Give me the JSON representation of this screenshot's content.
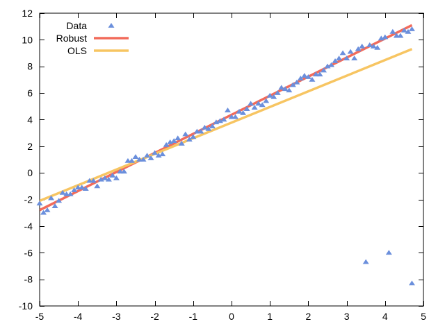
{
  "chart_data": {
    "type": "scatter",
    "title": "",
    "xlabel": "",
    "ylabel": "",
    "xlim": [
      -5,
      5
    ],
    "ylim": [
      -10,
      12
    ],
    "xticks": [
      -5,
      -4,
      -3,
      -2,
      -1,
      0,
      1,
      2,
      3,
      4,
      5
    ],
    "yticks": [
      -10,
      -8,
      -6,
      -4,
      -2,
      0,
      2,
      4,
      6,
      8,
      10,
      12
    ],
    "grid": false,
    "legend_position": "top-left",
    "series": [
      {
        "name": "Data",
        "kind": "points",
        "marker": "triangle",
        "color": "#6b8fdc",
        "points": [
          [
            -5.0,
            -2.3
          ],
          [
            -4.9,
            -3.0
          ],
          [
            -4.8,
            -2.8
          ],
          [
            -4.7,
            -1.9
          ],
          [
            -4.6,
            -2.5
          ],
          [
            -4.5,
            -2.1
          ],
          [
            -4.4,
            -1.5
          ],
          [
            -4.3,
            -1.6
          ],
          [
            -4.2,
            -1.6
          ],
          [
            -4.1,
            -1.3
          ],
          [
            -4.0,
            -1.1
          ],
          [
            -3.9,
            -1.1
          ],
          [
            -3.8,
            -1.2
          ],
          [
            -3.7,
            -0.6
          ],
          [
            -3.6,
            -0.6
          ],
          [
            -3.5,
            -1.0
          ],
          [
            -3.4,
            -0.5
          ],
          [
            -3.3,
            -0.4
          ],
          [
            -3.2,
            -0.5
          ],
          [
            -3.1,
            -0.2
          ],
          [
            -3.0,
            -0.4
          ],
          [
            -2.9,
            0.1
          ],
          [
            -2.8,
            0.1
          ],
          [
            -2.7,
            0.9
          ],
          [
            -2.6,
            0.9
          ],
          [
            -2.5,
            1.2
          ],
          [
            -2.4,
            1.0
          ],
          [
            -2.3,
            1.0
          ],
          [
            -2.2,
            1.3
          ],
          [
            -2.1,
            1.1
          ],
          [
            -2.0,
            1.5
          ],
          [
            -1.9,
            1.3
          ],
          [
            -1.8,
            1.4
          ],
          [
            -1.7,
            2.1
          ],
          [
            -1.6,
            2.3
          ],
          [
            -1.5,
            2.4
          ],
          [
            -1.4,
            2.6
          ],
          [
            -1.3,
            2.2
          ],
          [
            -1.2,
            2.9
          ],
          [
            -1.1,
            2.5
          ],
          [
            -1.0,
            2.7
          ],
          [
            -0.9,
            3.1
          ],
          [
            -0.8,
            3.1
          ],
          [
            -0.7,
            3.4
          ],
          [
            -0.6,
            3.3
          ],
          [
            -0.5,
            3.5
          ],
          [
            -0.4,
            3.8
          ],
          [
            -0.3,
            3.9
          ],
          [
            -0.2,
            4.0
          ],
          [
            -0.1,
            4.7
          ],
          [
            0.0,
            4.2
          ],
          [
            0.1,
            4.2
          ],
          [
            0.2,
            4.6
          ],
          [
            0.3,
            4.5
          ],
          [
            0.4,
            4.8
          ],
          [
            0.5,
            5.2
          ],
          [
            0.6,
            4.9
          ],
          [
            0.7,
            5.2
          ],
          [
            0.8,
            5.1
          ],
          [
            0.9,
            5.4
          ],
          [
            1.0,
            5.8
          ],
          [
            1.1,
            5.7
          ],
          [
            1.2,
            6.0
          ],
          [
            1.3,
            6.4
          ],
          [
            1.4,
            6.3
          ],
          [
            1.5,
            6.2
          ],
          [
            1.6,
            6.6
          ],
          [
            1.7,
            6.8
          ],
          [
            1.8,
            7.1
          ],
          [
            1.9,
            7.3
          ],
          [
            2.0,
            7.2
          ],
          [
            2.1,
            7.0
          ],
          [
            2.2,
            7.4
          ],
          [
            2.3,
            7.4
          ],
          [
            2.4,
            7.7
          ],
          [
            2.5,
            8.0
          ],
          [
            2.6,
            8.1
          ],
          [
            2.7,
            8.4
          ],
          [
            2.8,
            8.6
          ],
          [
            2.9,
            9.0
          ],
          [
            3.0,
            8.6
          ],
          [
            3.1,
            9.1
          ],
          [
            3.2,
            8.6
          ],
          [
            3.3,
            9.3
          ],
          [
            3.4,
            9.5
          ],
          [
            3.5,
            -6.7
          ],
          [
            3.6,
            9.6
          ],
          [
            3.7,
            9.5
          ],
          [
            3.8,
            9.4
          ],
          [
            3.9,
            10.1
          ],
          [
            4.0,
            10.2
          ],
          [
            4.1,
            -6.0
          ],
          [
            4.2,
            10.6
          ],
          [
            4.3,
            10.3
          ],
          [
            4.4,
            10.3
          ],
          [
            4.5,
            10.7
          ],
          [
            4.6,
            10.6
          ],
          [
            4.7,
            -8.3
          ],
          [
            4.7,
            10.8
          ]
        ]
      },
      {
        "name": "Robust",
        "kind": "line",
        "color": "#f26b5b",
        "points": [
          [
            -5.0,
            -2.8
          ],
          [
            4.7,
            11.1
          ]
        ]
      },
      {
        "name": "OLS",
        "kind": "line",
        "color": "#f7c562",
        "points": [
          [
            -5.0,
            -2.1
          ],
          [
            4.7,
            9.3
          ]
        ]
      }
    ]
  }
}
